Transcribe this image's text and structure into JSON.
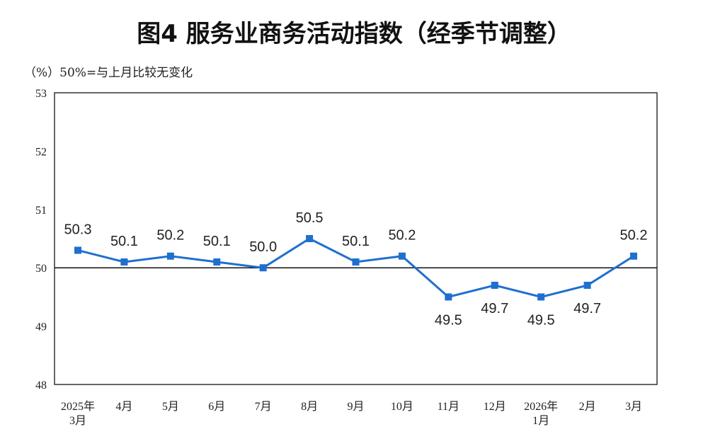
{
  "chart_data": {
    "type": "line",
    "title": "图4  服务业商务活动指数（经季节调整）",
    "unit_note": "（%）50%=与上月比较无变化",
    "categories": [
      [
        "2025年",
        "3月"
      ],
      [
        "4月"
      ],
      [
        "5月"
      ],
      [
        "6月"
      ],
      [
        "7月"
      ],
      [
        "8月"
      ],
      [
        "9月"
      ],
      [
        "10月"
      ],
      [
        "11月"
      ],
      [
        "12月"
      ],
      [
        "2026年",
        "1月"
      ],
      [
        "2月"
      ],
      [
        "3月"
      ]
    ],
    "series": [
      {
        "name": "服务业商务活动指数",
        "values": [
          50.3,
          50.1,
          50.2,
          50.1,
          50.0,
          50.5,
          50.1,
          50.2,
          49.5,
          49.7,
          49.5,
          49.7,
          50.2
        ],
        "color": "#1f6fcf"
      }
    ],
    "data_labels": [
      "50.3",
      "50.1",
      "50.2",
      "50.1",
      "50.0",
      "50.5",
      "50.1",
      "50.2",
      "49.5",
      "49.7",
      "49.5",
      "49.7",
      "50.2"
    ],
    "ylim": [
      48,
      53
    ],
    "yticks": [
      "48",
      "49",
      "50",
      "51",
      "52",
      "53"
    ],
    "reference_line": 50,
    "grid": false,
    "xlabel": "",
    "ylabel": ""
  }
}
